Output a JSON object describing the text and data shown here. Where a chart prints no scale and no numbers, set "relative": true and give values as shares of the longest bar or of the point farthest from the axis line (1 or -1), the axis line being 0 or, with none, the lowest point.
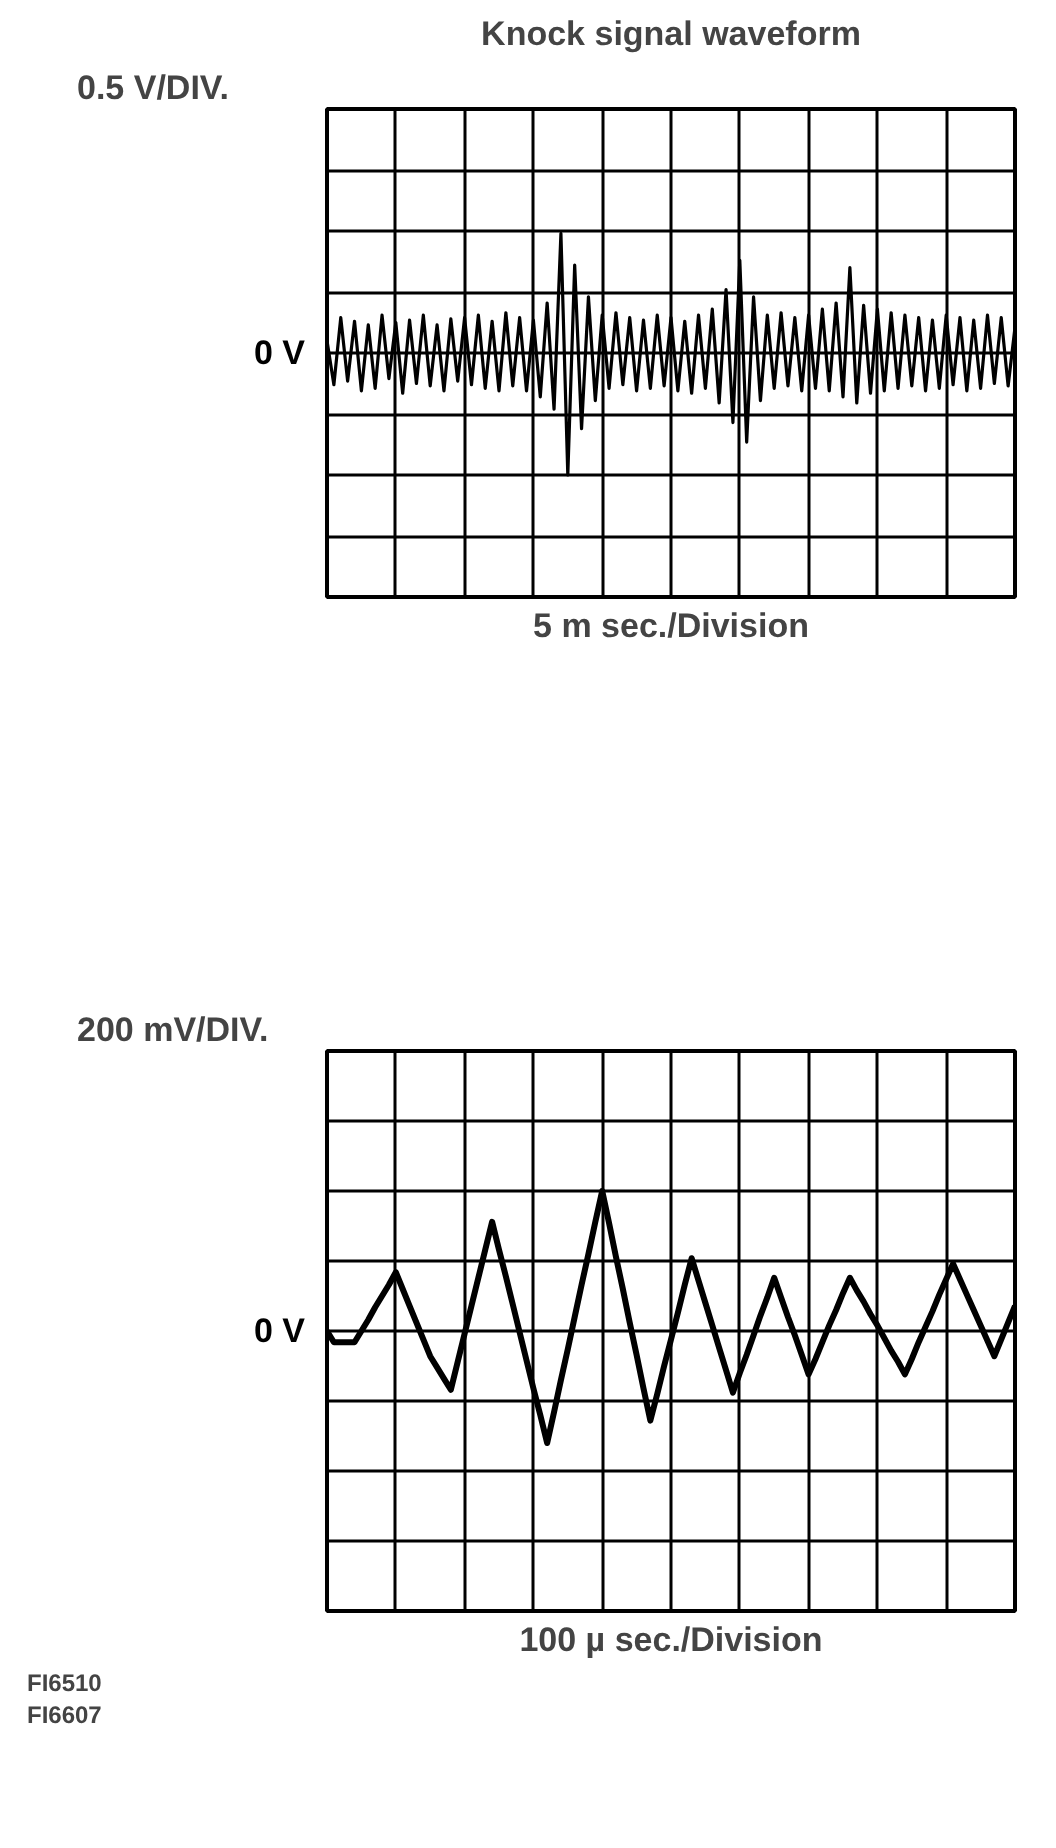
{
  "chart_data": [
    {
      "type": "line",
      "title": "Knock signal waveform",
      "ylabel": "0.5 V/DIV.",
      "xlabel": "5 m sec./Division",
      "color": "#000000",
      "grid": true,
      "relative": true,
      "annotations": [
        "0 V"
      ],
      "categories": [
        null,
        null,
        null,
        null,
        null,
        null,
        null,
        null,
        null,
        null,
        null,
        null,
        null,
        null,
        null,
        null,
        null,
        null,
        null,
        null,
        null,
        null,
        null,
        null,
        null,
        null,
        null,
        null,
        null,
        null,
        null,
        null,
        null,
        null,
        null,
        null,
        null,
        null,
        null,
        null,
        null,
        null,
        null,
        null,
        null,
        null,
        null,
        null,
        null,
        null,
        null,
        null,
        null,
        null,
        null,
        null,
        null,
        null,
        null,
        null,
        null,
        null,
        null,
        null,
        null,
        null,
        null,
        null,
        null,
        null,
        null,
        null,
        null,
        null,
        null,
        null,
        null,
        null,
        null,
        null,
        null,
        null,
        null,
        null,
        null,
        null,
        null,
        null,
        null,
        null,
        null,
        null,
        null,
        null,
        null,
        null,
        null,
        null,
        null,
        null,
        null
      ],
      "values": [
        0.1,
        -0.26,
        0.29,
        -0.23,
        0.26,
        -0.31,
        0.23,
        -0.29,
        0.31,
        -0.21,
        0.25,
        -0.33,
        0.27,
        -0.25,
        0.31,
        -0.27,
        0.23,
        -0.31,
        0.28,
        -0.23,
        0.29,
        -0.26,
        0.31,
        -0.29,
        0.26,
        -0.31,
        0.33,
        -0.27,
        0.29,
        -0.31,
        0.27,
        -0.36,
        0.41,
        -0.46,
        0.98,
        -1,
        0.72,
        -0.62,
        0.46,
        -0.39,
        0.31,
        -0.29,
        0.33,
        -0.26,
        0.29,
        -0.31,
        0.27,
        -0.29,
        0.31,
        -0.27,
        0.29,
        -0.31,
        0.26,
        -0.33,
        0.31,
        -0.29,
        0.36,
        -0.41,
        0.52,
        -0.57,
        0.76,
        -0.73,
        0.46,
        -0.39,
        0.31,
        -0.29,
        0.33,
        -0.27,
        0.29,
        -0.31,
        0.31,
        -0.29,
        0.36,
        -0.31,
        0.41,
        -0.36,
        0.7,
        -0.41,
        0.39,
        -0.33,
        0.36,
        -0.31,
        0.33,
        -0.29,
        0.31,
        -0.27,
        0.29,
        -0.31,
        0.27,
        -0.29,
        0.31,
        -0.26,
        0.29,
        -0.31,
        0.27,
        -0.29,
        0.31,
        -0.25,
        0.29,
        -0.27,
        0.21
      ]
    },
    {
      "type": "line",
      "ylabel": "200 mV/DIV.",
      "xlabel": "100 µ sec./Division",
      "color": "#000000",
      "grid": true,
      "relative": true,
      "annotations": [
        "0 V",
        "FI6510",
        "FI6607"
      ],
      "categories": [
        null,
        null,
        null,
        null,
        null,
        null,
        null,
        null,
        null,
        null,
        null,
        null,
        null,
        null,
        null,
        null,
        null,
        null,
        null,
        null,
        null,
        null,
        null,
        null,
        null,
        null,
        null,
        null,
        null,
        null,
        null,
        null,
        null,
        null,
        null,
        null,
        null,
        null,
        null,
        null,
        null,
        null,
        null,
        null,
        null,
        null,
        null,
        null,
        null,
        null,
        null,
        null,
        null,
        null,
        null,
        null,
        null,
        null,
        null,
        null,
        null,
        null,
        null,
        null,
        null,
        null,
        null,
        null,
        null,
        null,
        null,
        null,
        null,
        null,
        null,
        null,
        null,
        null,
        null,
        null,
        null,
        null,
        null,
        null,
        null,
        null,
        null,
        null,
        null,
        null,
        null,
        null,
        null,
        null,
        null,
        null,
        null,
        null,
        null,
        null,
        null
      ],
      "values": [
        0,
        -0.08,
        -0.08,
        -0.08,
        -0.08,
        0,
        0.08,
        0.17,
        0.25,
        0.33,
        0.42,
        0.3,
        0.18,
        0.06,
        -0.06,
        -0.18,
        -0.26,
        -0.34,
        -0.42,
        -0.22,
        -0.02,
        0.18,
        0.38,
        0.58,
        0.78,
        0.58,
        0.39,
        0.19,
        -0.01,
        -0.21,
        -0.41,
        -0.6,
        -0.8,
        -0.58,
        -0.35,
        -0.13,
        0.1,
        0.33,
        0.55,
        0.78,
        1,
        0.77,
        0.53,
        0.3,
        0.06,
        -0.17,
        -0.41,
        -0.64,
        -0.45,
        -0.25,
        -0.06,
        0.13,
        0.33,
        0.52,
        0.36,
        0.2,
        0.04,
        -0.12,
        -0.28,
        -0.44,
        -0.3,
        -0.17,
        -0.03,
        0.11,
        0.24,
        0.38,
        0.24,
        0.1,
        -0.03,
        -0.17,
        -0.31,
        -0.2,
        -0.08,
        0.04,
        0.15,
        0.27,
        0.38,
        0.29,
        0.21,
        0.12,
        0.04,
        -0.05,
        -0.14,
        -0.22,
        -0.31,
        -0.2,
        -0.08,
        0.03,
        0.14,
        0.26,
        0.37,
        0.48,
        0.37,
        0.26,
        0.15,
        0.04,
        -0.07,
        -0.18,
        -0.06,
        0.06,
        0.18
      ]
    }
  ]
}
